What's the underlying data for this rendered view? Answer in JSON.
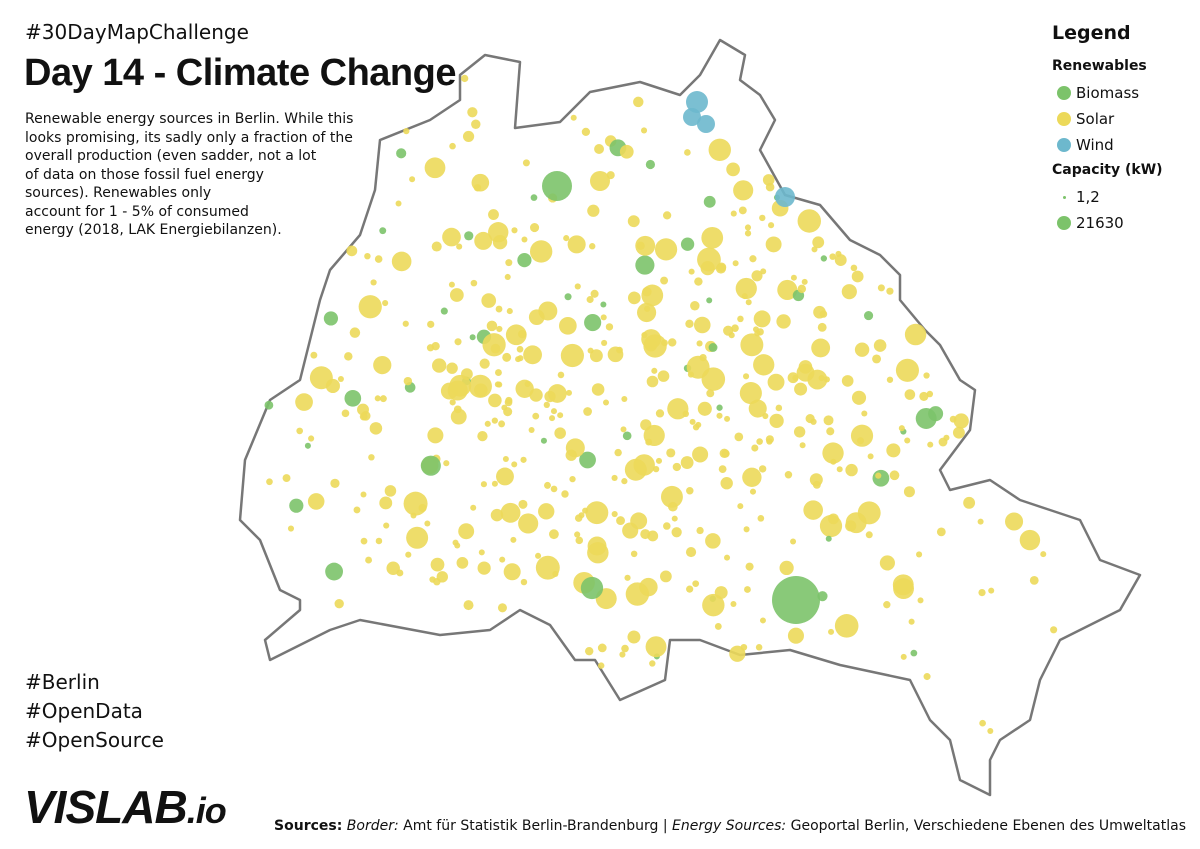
{
  "header": {
    "hashtag": "#30DayMapChallenge",
    "title": "Day 14 - Climate Change",
    "description": [
      "Renewable energy sources in Berlin. While this",
      "looks promising, its sadly only a fraction of the",
      "overall production (even sadder, not a lot",
      "of data on those fossil fuel energy",
      "sources). Renewables only",
      "account for 1 - 5% of consumed",
      "energy (2018, LAK Energiebilanzen)."
    ]
  },
  "legend": {
    "title": "Legend",
    "renewables_title": "Renewables",
    "renewables": [
      {
        "label": "Biomass",
        "color": "#7cc36a"
      },
      {
        "label": "Solar",
        "color": "#ecd95a"
      },
      {
        "label": "Wind",
        "color": "#6db8cd"
      }
    ],
    "capacity_title": "Capacity (kW)",
    "capacity": [
      "1,2",
      "21630"
    ]
  },
  "tags": [
    "#Berlin",
    "#OpenData",
    "#OpenSource"
  ],
  "logo": {
    "main": "VISLAB",
    "suffix": ".io"
  },
  "sources": [
    "Sources:",
    "Border:",
    "Amt für Statistik Berlin-Brandenburg |",
    "Energy Sources:",
    "Geoportal Berlin, Verschiedene Ebenen des Umweltatlas"
  ]
}
